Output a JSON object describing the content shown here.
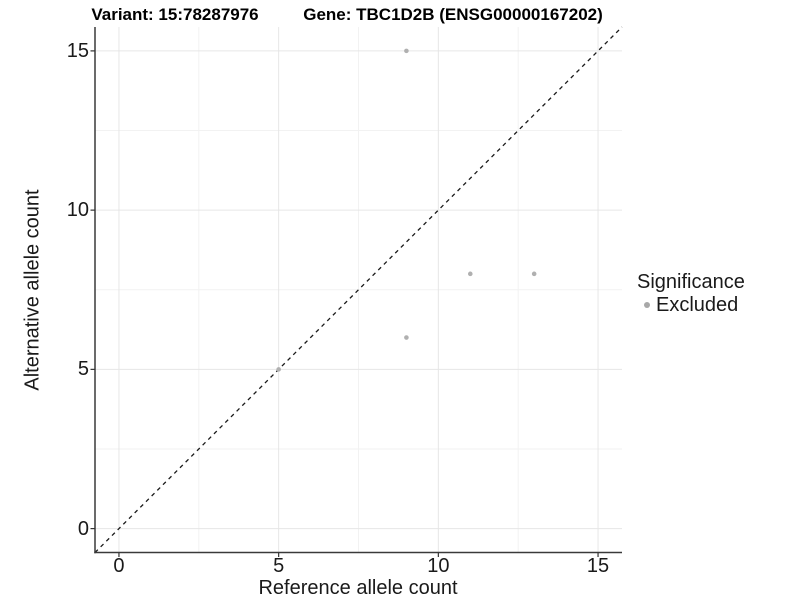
{
  "titles": {
    "variant": "Variant: 15:78287976",
    "gene": "Gene: TBC1D2B (ENSG00000167202)"
  },
  "chart_data": {
    "type": "scatter",
    "title": "Variant: 15:78287976  Gene: TBC1D2B (ENSG00000167202)",
    "xlabel": "Reference allele count",
    "ylabel": "Alternative allele count",
    "xlim": [
      -0.75,
      15.75
    ],
    "ylim": [
      -0.75,
      15.75
    ],
    "x_ticks": [
      0,
      5,
      10,
      15
    ],
    "y_ticks": [
      0,
      5,
      10,
      15
    ],
    "x_minor_ticks": [
      2.5,
      7.5,
      12.5
    ],
    "y_minor_ticks": [
      2.5,
      7.5,
      12.5
    ],
    "grid": true,
    "series": [
      {
        "name": "Excluded",
        "points": [
          [
            5,
            5
          ],
          [
            9,
            6
          ],
          [
            11,
            8
          ],
          [
            13,
            8
          ],
          [
            9,
            15
          ]
        ],
        "color": "#b0b0b0",
        "marker_radius": 2.3
      }
    ],
    "reference_line": {
      "type": "identity",
      "from": [
        -0.75,
        -0.75
      ],
      "to": [
        15.75,
        15.75
      ],
      "style": "dashed",
      "color": "#1a1a1a"
    },
    "legend": {
      "title": "Significance",
      "position": "right",
      "entries": [
        {
          "label": "Excluded",
          "color": "#a8a8a8"
        }
      ]
    }
  },
  "colors": {
    "background": "#ffffff",
    "major_grid": "#e6e6e6",
    "minor_grid": "#f2f2f2",
    "axis_line": "#3a3a3a",
    "tick_mark": "#333333",
    "point": "#b0b0b0",
    "legend_dot": "#a8a8a8",
    "dashed_line": "#1a1a1a"
  }
}
